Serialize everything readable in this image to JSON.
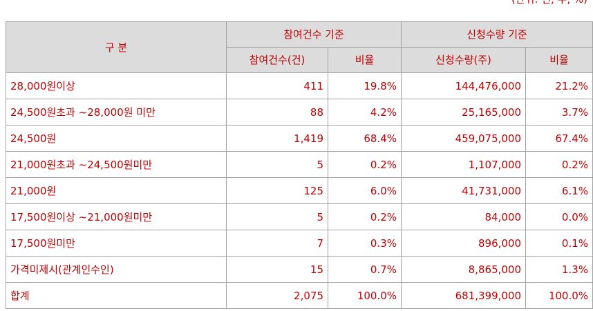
{
  "unit_note": "(단위: 건, 주, %)",
  "headers": {
    "category": "구 분",
    "group_participation": "참여건수 기준",
    "group_quantity": "신청수량 기준",
    "participation_count": "참여건수(건)",
    "participation_ratio": "비율",
    "quantity": "신청수량(주)",
    "quantity_ratio": "비율"
  },
  "rows": [
    {
      "label": "28,000원이상",
      "count": "411",
      "count_ratio": "19.8%",
      "quantity": "144,476,000",
      "quantity_ratio": "21.2%"
    },
    {
      "label": "24,500원초과 ~28,000원 미만",
      "count": "88",
      "count_ratio": "4.2%",
      "quantity": "25,165,000",
      "quantity_ratio": "3.7%"
    },
    {
      "label": "24,500원",
      "count": "1,419",
      "count_ratio": "68.4%",
      "quantity": "459,075,000",
      "quantity_ratio": "67.4%"
    },
    {
      "label": "21,000원초과 ~24,500원미만",
      "count": "5",
      "count_ratio": "0.2%",
      "quantity": "1,107,000",
      "quantity_ratio": "0.2%"
    },
    {
      "label": "21,000원",
      "count": "125",
      "count_ratio": "6.0%",
      "quantity": "41,731,000",
      "quantity_ratio": "6.1%"
    },
    {
      "label": "17,500원이상 ~21,000원미만",
      "count": "5",
      "count_ratio": "0.2%",
      "quantity": "84,000",
      "quantity_ratio": "0.0%"
    },
    {
      "label": "17,500원미만",
      "count": "7",
      "count_ratio": "0.3%",
      "quantity": "896,000",
      "quantity_ratio": "0.1%"
    },
    {
      "label": "가격미제시(관계인수인)",
      "count": "15",
      "count_ratio": "0.7%",
      "quantity": "8,865,000",
      "quantity_ratio": "1.3%"
    },
    {
      "label": "합계",
      "count": "2,075",
      "count_ratio": "100.0%",
      "quantity": "681,399,000",
      "quantity_ratio": "100.0%"
    }
  ]
}
